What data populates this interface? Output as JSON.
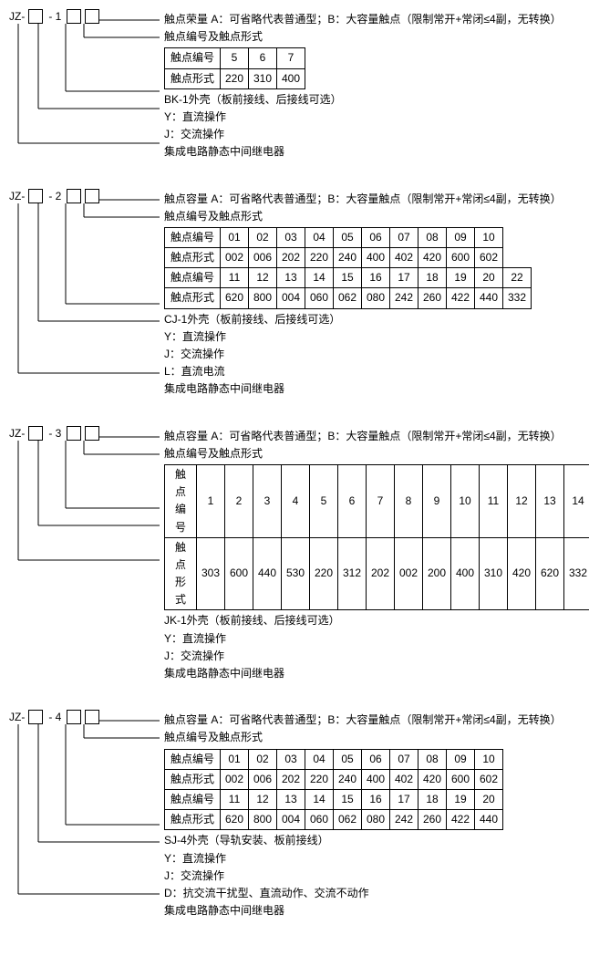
{
  "sections": [
    {
      "code_prefix": "JZ-",
      "code_mid": "- 1",
      "lines": [
        "触点荣量    A：可省略代表普通型；B：大容量触点（限制常开+常闭≤4副，无转换）",
        "触点编号及触点形式"
      ],
      "table": {
        "rows": [
          [
            "触点编号",
            "5",
            "6",
            "7"
          ],
          [
            "触点形式",
            "220",
            "310",
            "400"
          ]
        ]
      },
      "after_table": [
        "BK-1外壳（板前接线、后接线可选）",
        "Y：直流操作",
        "J：交流操作",
        "集成电路静态中间继电器"
      ]
    },
    {
      "code_prefix": "JZ-",
      "code_mid": "- 2",
      "lines": [
        "触点容量    A：可省略代表普通型；B：大容量触点（限制常开+常闭≤4副，无转换）",
        "触点编号及触点形式"
      ],
      "table": {
        "rows": [
          [
            "触点编号",
            "01",
            "02",
            "03",
            "04",
            "05",
            "06",
            "07",
            "08",
            "09",
            "10"
          ],
          [
            "触点形式",
            "002",
            "006",
            "202",
            "220",
            "240",
            "400",
            "402",
            "420",
            "600",
            "602"
          ],
          [
            "触点编号",
            "11",
            "12",
            "13",
            "14",
            "15",
            "16",
            "17",
            "18",
            "19",
            "20",
            "22"
          ],
          [
            "触点形式",
            "620",
            "800",
            "004",
            "060",
            "062",
            "080",
            "242",
            "260",
            "422",
            "440",
            "332"
          ]
        ]
      },
      "after_table": [
        "CJ-1外壳（板前接线、后接线可选）",
        "Y：直流操作",
        "J：交流操作",
        "L：直流电流",
        "集成电路静态中间继电器"
      ]
    },
    {
      "code_prefix": "JZ-",
      "code_mid": "- 3",
      "lines": [
        "触点容量    A：可省略代表普通型；B：大容量触点（限制常开+常闭≤4副，无转换）",
        "触点编号及触点形式"
      ],
      "table": {
        "rows": [
          [
            "触点编号",
            "1",
            "2",
            "3",
            "4",
            "5",
            "6",
            "7",
            "8",
            "9",
            "10",
            "11",
            "12",
            "13",
            "14"
          ],
          [
            "触点形式",
            "303",
            "600",
            "440",
            "530",
            "220",
            "312",
            "202",
            "002",
            "200",
            "400",
            "310",
            "420",
            "620",
            "332"
          ]
        ]
      },
      "after_table": [
        "JK-1外壳（板前接线、后接线可选）",
        "Y：直流操作",
        "J：交流操作",
        "集成电路静态中间继电器"
      ]
    },
    {
      "code_prefix": "JZ-",
      "code_mid": "- 4",
      "lines": [
        "触点容量    A：可省略代表普通型；B：大容量触点（限制常开+常闭≤4副，无转换）",
        "触点编号及触点形式"
      ],
      "table": {
        "rows": [
          [
            "触点编号",
            "01",
            "02",
            "03",
            "04",
            "05",
            "06",
            "07",
            "08",
            "09",
            "10"
          ],
          [
            "触点形式",
            "002",
            "006",
            "202",
            "220",
            "240",
            "400",
            "402",
            "420",
            "600",
            "602"
          ],
          [
            "触点编号",
            "11",
            "12",
            "13",
            "14",
            "15",
            "16",
            "17",
            "18",
            "19",
            "20"
          ],
          [
            "触点形式",
            "620",
            "800",
            "004",
            "060",
            "062",
            "080",
            "242",
            "260",
            "422",
            "440"
          ]
        ]
      },
      "after_table": [
        "SJ-4外壳（导轨安装、板前接线）",
        "Y：直流操作",
        "J：交流操作",
        "D：抗交流干扰型、直流动作、交流不动作",
        "集成电路静态中间继电器"
      ]
    }
  ]
}
